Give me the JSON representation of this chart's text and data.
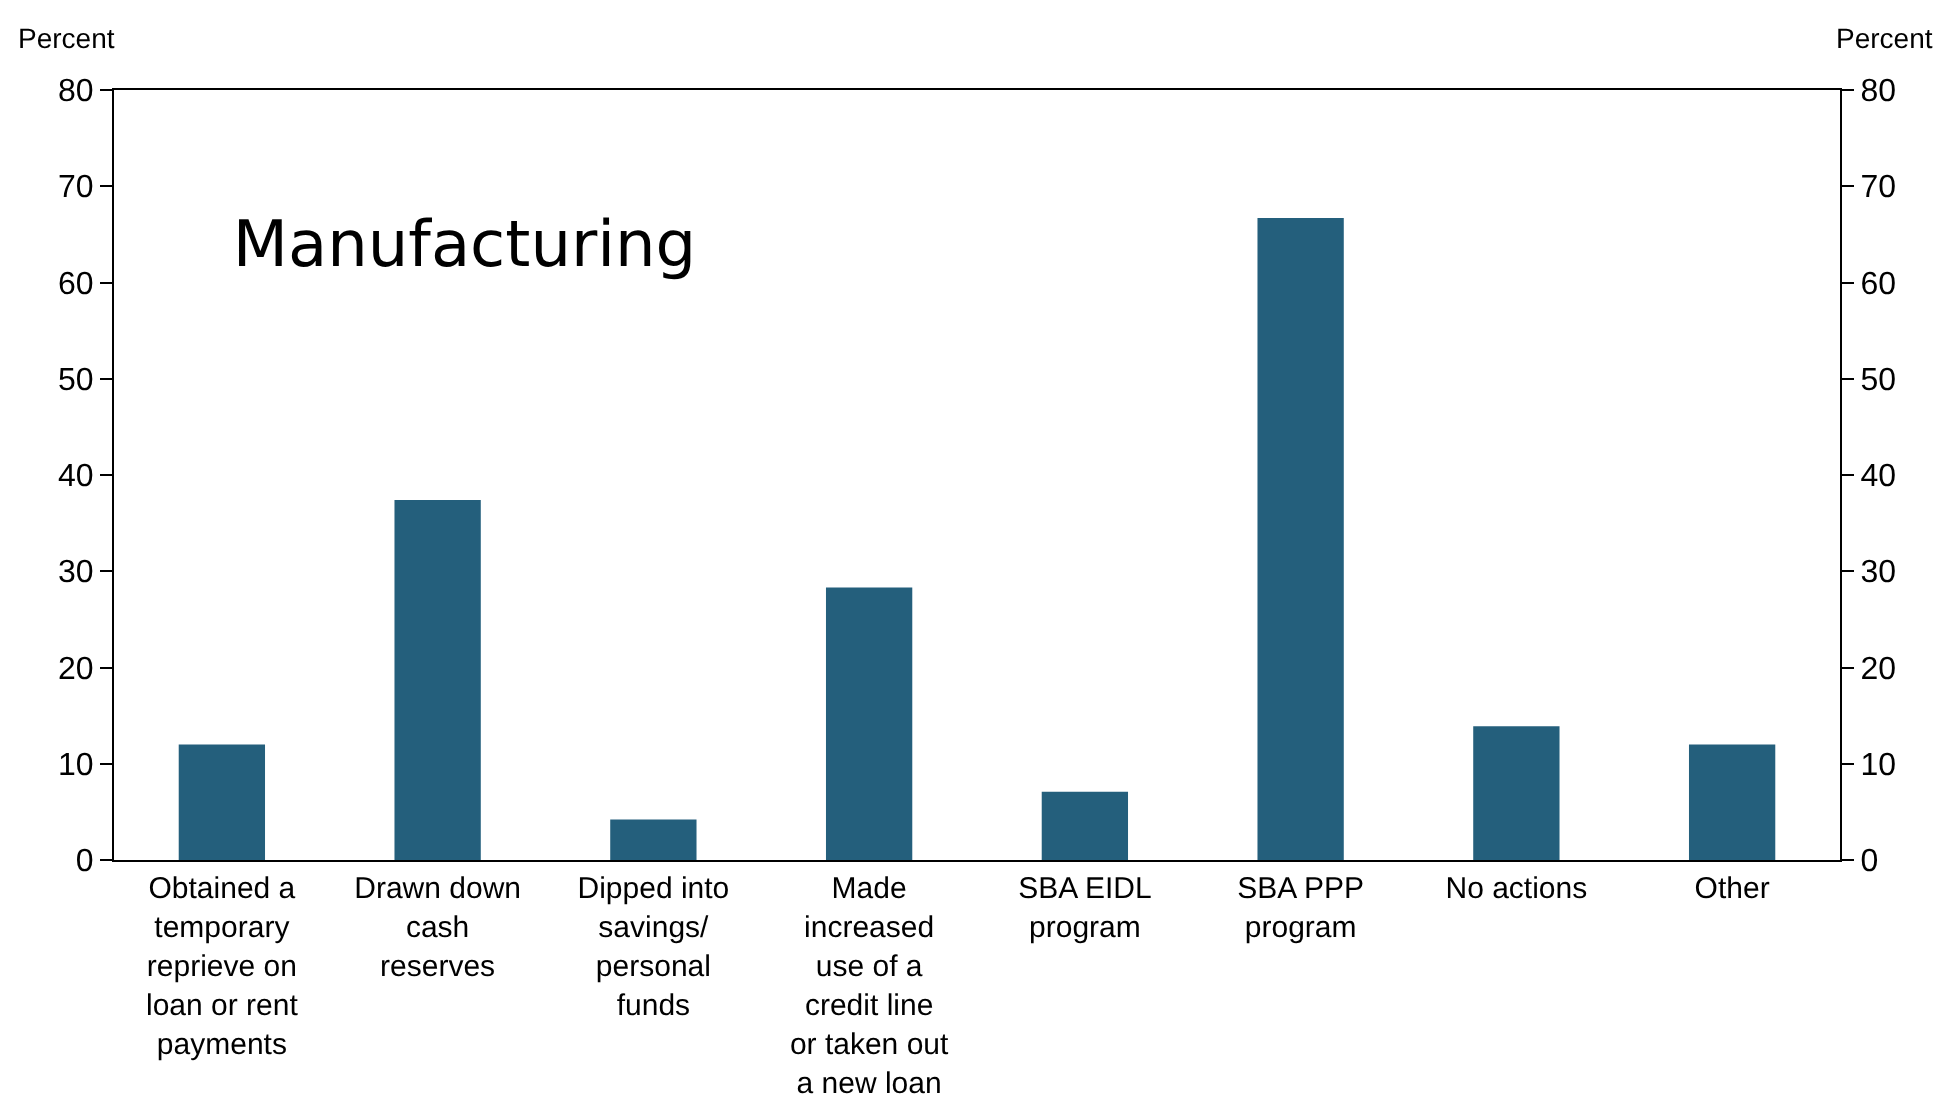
{
  "chart_data": {
    "type": "bar",
    "title": "Manufacturing",
    "ylabel": "Percent",
    "y2label": "Percent",
    "categories": [
      "Obtained a temporary reprieve on loan or rent payments",
      "Drawn down cash reserves",
      "Dipped into savings/ personal funds",
      "Made increased use of a credit line or taken out a new loan",
      "SBA EIDL program",
      "SBA PPP program",
      "No actions",
      "Other"
    ],
    "values": [
      12,
      37.4,
      4.2,
      28.3,
      7.1,
      66.7,
      13.9,
      12
    ],
    "color": "#245f7c",
    "ylim": [
      0,
      80
    ],
    "yticks": [
      0,
      10,
      20,
      30,
      40,
      50,
      60,
      70,
      80
    ],
    "y2lim": [
      0,
      80
    ],
    "y2ticks": [
      0,
      10,
      20,
      30,
      40,
      50,
      60,
      70,
      80
    ],
    "grid": false,
    "legend": false
  }
}
